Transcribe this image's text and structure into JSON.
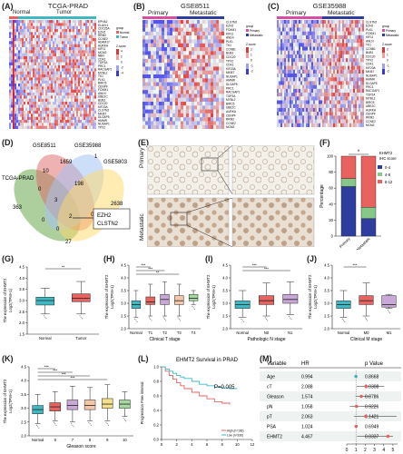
{
  "panels": {
    "a": {
      "label": "(A)",
      "title": "TCGA-PRAD",
      "groups": [
        "Normal",
        "Tumor"
      ]
    },
    "b": {
      "label": "(B)",
      "title": "GSE8511",
      "groups": [
        "Primary",
        "Metastatic"
      ]
    },
    "c": {
      "label": "(C)",
      "title": "GSE35988",
      "groups": [
        "Primary",
        "Metastatic"
      ]
    },
    "d": {
      "label": "(D)"
    },
    "e": {
      "label": "(E)",
      "rows": [
        "Primary",
        "Metastatic"
      ]
    },
    "f": {
      "label": "(F)"
    },
    "g": {
      "label": "(G)"
    },
    "h": {
      "label": "(H)"
    },
    "i": {
      "label": "(I)"
    },
    "j": {
      "label": "(J)"
    },
    "k": {
      "label": "(K)"
    },
    "l": {
      "label": "(L)"
    },
    "m": {
      "label": "(M)"
    }
  },
  "heatmap_legend": {
    "a": {
      "group_title": "group",
      "groups": [
        "Normal",
        "Tumor"
      ],
      "scale_title": "Z-score",
      "scale": [
        "4",
        "2",
        "0",
        "-2",
        "-4"
      ]
    },
    "b": {
      "group_title": "group",
      "groups": [
        "Primary",
        "Metastatic"
      ],
      "scale_title": "Z-score",
      "scale": [
        "2",
        "1",
        "0",
        "-1",
        "-2"
      ]
    },
    "c": {
      "group_title": "group",
      "groups": [
        "Primary",
        "Metastatic"
      ],
      "scale_title": "Z-score",
      "scale": [
        "2",
        "1",
        "0",
        "-1",
        "-2"
      ]
    }
  },
  "gene_labels": {
    "a": [
      "EPHA2",
      "ELAVL1",
      "CDC25A",
      "EZH2",
      "RRM2",
      "CCNE2",
      "ADAM17",
      "AURKA",
      "KIF11",
      "MCM2",
      "NBN",
      "CDK1",
      "TOP2A",
      "PRC1",
      "RACGAP1",
      "MYBL2",
      "TK1",
      "PLK1",
      "BIRC5",
      "CENPF",
      "FOXM1",
      "ANLN",
      "UBE2C",
      "BUB1",
      "CDC20",
      "KIF20A",
      "CLSTN2",
      "MKI67",
      "DLGAP5",
      "HMMR",
      "NUSAP1",
      "TPX2"
    ],
    "b": [
      "CLSTN2",
      "EZH2",
      "FOXM1",
      "KIF11",
      "ANLN",
      "PLK1",
      "TK1",
      "CCNB1",
      "BUB1",
      "CDC20",
      "TPX2",
      "CDK1",
      "KIF20A",
      "MKI67",
      "NUSAP1",
      "HMMR",
      "DLGAP5",
      "PRC1",
      "RACGAP1",
      "TOP2A",
      "MYBL2",
      "BIRC5",
      "UBE2C",
      "AURKA",
      "CENPF",
      "RRM2",
      "CCNE2",
      "MCM2"
    ],
    "c": [
      "CLSTN2",
      "EZH2",
      "PLK1",
      "FOXM1",
      "KIF11",
      "ANLN",
      "TK1",
      "CCNB1",
      "BUB1",
      "CDC20",
      "TPX2",
      "CDK1",
      "KIF20A",
      "MKI67",
      "NUSAP1",
      "HMMR",
      "DLGAP5",
      "PRC1",
      "RACGAP1",
      "TOP2A",
      "MYBL2",
      "BIRC5",
      "UBE2C",
      "AURKA",
      "CENPF",
      "RRM2",
      "CCNE2",
      "MCM2"
    ]
  },
  "venn": {
    "sets": [
      "TCGA-PRAD",
      "GSE8511",
      "GSE35988",
      "GSE5803"
    ],
    "counts": [
      "363",
      "10",
      "1659",
      "1",
      "0",
      "198",
      "3",
      "2638",
      "2",
      "0",
      "0",
      "0",
      "27"
    ],
    "genes": [
      "EZH2",
      "CLSTN2"
    ]
  },
  "chart_data": [
    {
      "id": "F",
      "type": "bar",
      "categories": [
        "Primary",
        "Metastatic"
      ],
      "ylabel": "Percentage",
      "yticks": [
        "0",
        "20",
        "40",
        "60",
        "80",
        "100"
      ],
      "ylim": [
        0,
        100
      ],
      "legend_title": "EHMT2\nIHC score",
      "series": [
        {
          "name": "0-4",
          "color": "#2d3e9e",
          "values": [
            62,
            22
          ]
        },
        {
          "name": "4-8",
          "color": "#88c78a",
          "values": [
            10,
            14
          ]
        },
        {
          "name": "8-12",
          "color": "#e8635f",
          "values": [
            28,
            64
          ]
        }
      ],
      "sig": "*"
    },
    {
      "id": "G",
      "type": "box",
      "ylabel": "The expression of EHMT2\nLog2(TPM+1)",
      "ylim": [
        1.5,
        4.5
      ],
      "yticks": [
        "1.5",
        "2.0",
        "2.5",
        "3.0",
        "3.5",
        "4.0",
        "4.5"
      ],
      "categories": [
        "Normal",
        "Tumor"
      ],
      "colors": [
        "#3fb8c2",
        "#e8635f"
      ],
      "boxes": [
        {
          "q1": 2.8,
          "med": 3.0,
          "q3": 3.15,
          "lo": 2.4,
          "hi": 3.55
        },
        {
          "q1": 2.95,
          "med": 3.1,
          "q3": 3.3,
          "lo": 2.4,
          "hi": 3.85
        }
      ],
      "sig": [
        "**"
      ]
    },
    {
      "id": "H",
      "type": "box",
      "ylabel": "The expression of EHMT2\nLog2(TPM+1)",
      "xlabel": "Clinical T stage",
      "ylim": [
        2.0,
        4.5
      ],
      "yticks": [
        "2.0",
        "2.5",
        "3.0",
        "3.5",
        "4.0",
        "4.5"
      ],
      "categories": [
        "Normal",
        "T1",
        "T2",
        "T3",
        "T4"
      ],
      "colors": [
        "#3fb8c2",
        "#e8635f",
        "#c9a8d8",
        "#f4c7a8",
        "#a4d9a0"
      ],
      "boxes": [
        {
          "q1": 2.8,
          "med": 2.95,
          "q3": 3.1,
          "lo": 2.45,
          "hi": 3.5
        },
        {
          "q1": 2.95,
          "med": 3.05,
          "q3": 3.25,
          "lo": 2.5,
          "hi": 3.75
        },
        {
          "q1": 2.95,
          "med": 3.15,
          "q3": 3.35,
          "lo": 2.5,
          "hi": 3.85
        },
        {
          "q1": 2.95,
          "med": 3.1,
          "q3": 3.3,
          "lo": 2.5,
          "hi": 3.75
        },
        {
          "q1": 3.1,
          "med": 3.2,
          "q3": 3.35,
          "lo": 2.95,
          "hi": 3.5
        }
      ],
      "sig": [
        "***",
        "***",
        "**"
      ]
    },
    {
      "id": "I",
      "type": "box",
      "ylabel": "The expression of EHMT2\nLog2(TPM+1)",
      "xlabel": "Pathologic N stage",
      "ylim": [
        2.0,
        4.5
      ],
      "yticks": [
        "2.0",
        "2.5",
        "3.0",
        "3.5",
        "4.0",
        "4.5"
      ],
      "categories": [
        "Normal",
        "N0",
        "N1"
      ],
      "colors": [
        "#3fb8c2",
        "#e8635f",
        "#c9a8d8"
      ],
      "boxes": [
        {
          "q1": 2.8,
          "med": 2.95,
          "q3": 3.1,
          "lo": 2.45,
          "hi": 3.5
        },
        {
          "q1": 2.95,
          "med": 3.1,
          "q3": 3.3,
          "lo": 2.5,
          "hi": 3.8
        },
        {
          "q1": 3.0,
          "med": 3.15,
          "q3": 3.35,
          "lo": 2.55,
          "hi": 3.85
        }
      ],
      "sig": [
        "***",
        "***"
      ]
    },
    {
      "id": "J",
      "type": "box",
      "ylabel": "The expression of EHMT2\nLog2(TPM+1)",
      "xlabel": "Clinical M stage",
      "ylim": [
        2.0,
        4.5
      ],
      "yticks": [
        "2.0",
        "2.5",
        "3.0",
        "3.5",
        "4.0",
        "4.5"
      ],
      "categories": [
        "Normal",
        "M0",
        "M1"
      ],
      "colors": [
        "#3fb8c2",
        "#e8635f",
        "#c9a8d8"
      ],
      "boxes": [
        {
          "q1": 2.8,
          "med": 2.95,
          "q3": 3.1,
          "lo": 2.45,
          "hi": 3.5
        },
        {
          "q1": 2.95,
          "med": 3.1,
          "q3": 3.3,
          "lo": 2.5,
          "hi": 3.8
        },
        {
          "q1": 2.85,
          "med": 2.95,
          "q3": 3.3,
          "lo": 2.8,
          "hi": 3.35
        }
      ],
      "sig": [
        "***"
      ]
    },
    {
      "id": "K",
      "type": "box",
      "ylabel": "The expression of EHMT2\nLog2(TPM+1)",
      "xlabel": "Gleason score",
      "ylim": [
        2.0,
        4.5
      ],
      "yticks": [
        "2.0",
        "2.5",
        "3.0",
        "3.5",
        "4.0",
        "4.5"
      ],
      "categories": [
        "Normal",
        "6",
        "7",
        "8",
        "9",
        "10"
      ],
      "colors": [
        "#3fb8c2",
        "#e8635f",
        "#c9a8d8",
        "#f4c7a8",
        "#f2e08a",
        "#a4d9a0"
      ],
      "boxes": [
        {
          "q1": 2.8,
          "med": 2.95,
          "q3": 3.1,
          "lo": 2.45,
          "hi": 3.5
        },
        {
          "q1": 2.9,
          "med": 3.05,
          "q3": 3.2,
          "lo": 2.55,
          "hi": 3.6
        },
        {
          "q1": 2.95,
          "med": 3.1,
          "q3": 3.3,
          "lo": 2.5,
          "hi": 3.8
        },
        {
          "q1": 2.95,
          "med": 3.1,
          "q3": 3.3,
          "lo": 2.55,
          "hi": 3.75
        },
        {
          "q1": 3.0,
          "med": 3.15,
          "q3": 3.35,
          "lo": 2.55,
          "hi": 3.85
        },
        {
          "q1": 3.0,
          "med": 3.15,
          "q3": 3.3,
          "lo": 2.7,
          "hi": 3.6
        }
      ],
      "sig": [
        "***",
        "***",
        "***",
        "***"
      ]
    },
    {
      "id": "L",
      "type": "line",
      "title": "EHMT2 Survival in PRAD",
      "ylabel": "Progression Free interval",
      "yticks": [
        "0.0",
        "0.2",
        "0.4",
        "0.6",
        "0.8",
        "1.0"
      ],
      "xticks": [
        "0",
        "2",
        "4",
        "6",
        "8",
        "10",
        "12"
      ],
      "ylim": [
        0,
        1
      ],
      "xlim": [
        0,
        12
      ],
      "pvalue": "P=0.005",
      "series": [
        {
          "name": "High (n=166)",
          "color": "#e8635f",
          "x": [
            0,
            0.5,
            1,
            1.5,
            2,
            2.5,
            3,
            4,
            5,
            6,
            7,
            8,
            9
          ],
          "y": [
            1.0,
            0.94,
            0.88,
            0.83,
            0.78,
            0.74,
            0.7,
            0.65,
            0.6,
            0.56,
            0.52,
            0.5,
            0.48
          ]
        },
        {
          "name": "Low (n=336)",
          "color": "#3fb8c2",
          "x": [
            0,
            0.5,
            1,
            1.5,
            2,
            2.5,
            3,
            4,
            5,
            6,
            7,
            8,
            9,
            10
          ],
          "y": [
            1.0,
            0.97,
            0.94,
            0.91,
            0.88,
            0.86,
            0.84,
            0.8,
            0.76,
            0.74,
            0.72,
            0.71,
            0.7,
            0.7
          ]
        }
      ]
    },
    {
      "id": "M",
      "type": "scatter",
      "columns": [
        "Variable",
        "HR",
        "p Value"
      ],
      "rows": [
        {
          "variable": "Age",
          "hr": "0.994",
          "p": "0.8668",
          "est": 0.994,
          "lo": 0.96,
          "hi": 1.03,
          "color": "#3fb8c2"
        },
        {
          "variable": "cT",
          "hr": "2.088",
          "p": "0.0308",
          "est": 2.088,
          "lo": 1.07,
          "hi": 4.06,
          "color": "#e8635f"
        },
        {
          "variable": "Gleason",
          "hr": "1.574",
          "p": "0.0786",
          "est": 1.574,
          "lo": 0.95,
          "hi": 2.61,
          "color": "#e8635f"
        },
        {
          "variable": "pN",
          "hr": "1.058",
          "p": "0.9226",
          "est": 1.058,
          "lo": 0.34,
          "hi": 3.3,
          "color": "#e8635f"
        },
        {
          "variable": "pT",
          "hr": "2.063",
          "p": "0.1421",
          "est": 2.063,
          "lo": 0.79,
          "hi": 5.4,
          "color": "#e8635f"
        },
        {
          "variable": "PSA",
          "hr": "1.024",
          "p": "0.6949",
          "est": 1.024,
          "lo": 0.91,
          "hi": 1.15,
          "color": "#e8635f"
        },
        {
          "variable": "EHMT2",
          "hr": "4.467",
          "p": "0.0337",
          "est": 4.467,
          "lo": 1.12,
          "hi": 5.0,
          "color": "#e8635f"
        }
      ],
      "xticks": [
        "0",
        "1",
        "2",
        "3",
        "4",
        "5"
      ],
      "xlim": [
        0,
        5.5
      ]
    }
  ]
}
